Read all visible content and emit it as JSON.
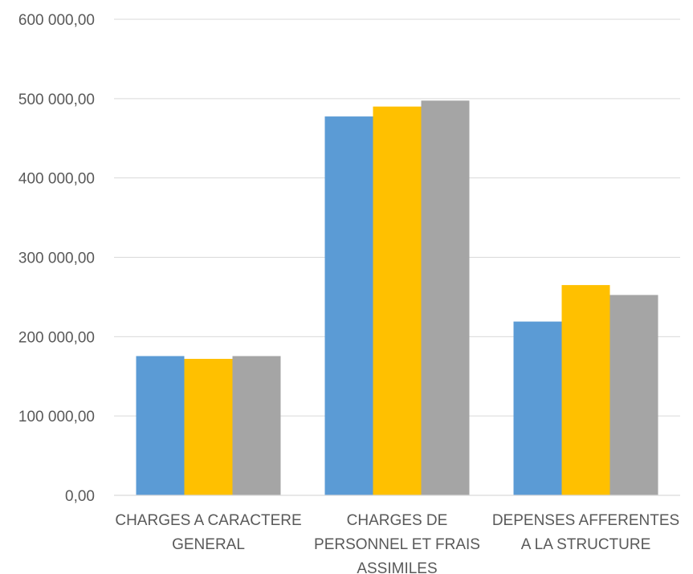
{
  "chart_data": {
    "type": "bar",
    "categories": [
      [
        "CHARGES A CARACTERE",
        "GENERAL"
      ],
      [
        "CHARGES DE",
        "PERSONNEL ET FRAIS",
        "ASSIMILES"
      ],
      [
        "DEPENSES AFFERENTES",
        "A LA STRUCTURE"
      ]
    ],
    "series": [
      {
        "color": "#5B9BD5",
        "values": [
          175500,
          477500,
          219000
        ]
      },
      {
        "color": "#FFC000",
        "values": [
          172000,
          490000,
          265000
        ]
      },
      {
        "color": "#A5A5A5",
        "values": [
          175500,
          497500,
          252500
        ]
      }
    ],
    "ylim": [
      0,
      600000
    ],
    "yticks": [
      0,
      100000,
      200000,
      300000,
      400000,
      500000,
      600000
    ],
    "ytick_labels": [
      "0,00",
      "100 000,00",
      "200 000,00",
      "300 000,00",
      "400 000,00",
      "500 000,00",
      "600 000,00"
    ],
    "grid": true,
    "legend": "none"
  }
}
